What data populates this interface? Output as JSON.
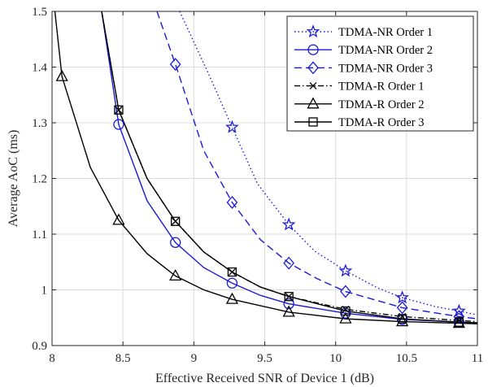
{
  "chart_data": {
    "type": "line",
    "xlabel": "Effective Received SNR of Device 1 (dB)",
    "ylabel": "Average AoC (ms)",
    "xlim": [
      8,
      11
    ],
    "ylim": [
      0.9,
      1.5
    ],
    "xticks": [
      8,
      8.5,
      9,
      9.5,
      10,
      10.5,
      11
    ],
    "xtick_labels": [
      "8",
      "8.5",
      "9",
      "9.5",
      "10",
      "10.5",
      "11"
    ],
    "yticks": [
      0.9,
      1.0,
      1.1,
      1.2,
      1.3,
      1.4,
      1.5
    ],
    "ytick_labels": [
      "0.9",
      "1",
      "1.1",
      "1.2",
      "1.3",
      "1.4",
      "1.5"
    ],
    "grid": true,
    "legend_position": "top-right",
    "series": [
      {
        "name": "TDMA-NR Order 1",
        "color": "#1a1ad6",
        "dash": "dotted",
        "marker": "star",
        "x": [
          8.9,
          9.1,
          9.27,
          9.45,
          9.67,
          9.85,
          10.07,
          10.3,
          10.47,
          10.7,
          10.87,
          11.0
        ],
        "y": [
          1.5,
          1.39,
          1.292,
          1.19,
          1.117,
          1.07,
          1.034,
          1.003,
          0.986,
          0.97,
          0.962,
          0.955
        ],
        "marker_indices": [
          2,
          4,
          6,
          8,
          10
        ]
      },
      {
        "name": "TDMA-NR Order 2",
        "color": "#1a1ad6",
        "dash": "solid",
        "marker": "circle",
        "x": [
          8.35,
          8.47,
          8.67,
          8.87,
          9.07,
          9.27,
          9.47,
          9.67,
          10.07,
          10.47,
          10.87,
          11.0
        ],
        "y": [
          1.5,
          1.297,
          1.16,
          1.085,
          1.04,
          1.012,
          0.99,
          0.975,
          0.958,
          0.947,
          0.942,
          0.94
        ],
        "marker_indices": [
          1,
          3,
          5,
          7,
          8,
          9,
          10
        ]
      },
      {
        "name": "TDMA-NR Order 3",
        "color": "#1a1ad6",
        "dash": "dashed",
        "marker": "diamond",
        "x": [
          8.74,
          8.87,
          9.07,
          9.27,
          9.47,
          9.67,
          9.87,
          10.07,
          10.47,
          10.87,
          11.0
        ],
        "y": [
          1.5,
          1.405,
          1.25,
          1.157,
          1.09,
          1.048,
          1.02,
          0.997,
          0.968,
          0.952,
          0.948
        ],
        "marker_indices": [
          1,
          3,
          5,
          7,
          8,
          9
        ]
      },
      {
        "name": "TDMA-R Order 1",
        "color": "#000000",
        "dash": "dashdot",
        "marker": "x",
        "x": [
          8.35,
          8.47,
          8.67,
          8.87,
          9.07,
          9.27,
          9.47,
          9.67,
          10.07,
          10.47,
          10.87,
          11.0
        ],
        "y": [
          1.5,
          1.323,
          1.2,
          1.123,
          1.068,
          1.032,
          1.005,
          0.988,
          0.965,
          0.952,
          0.945,
          0.943
        ],
        "marker_indices": [
          1,
          3,
          5,
          7,
          8,
          9,
          10
        ]
      },
      {
        "name": "TDMA-R Order 2",
        "color": "#000000",
        "dash": "solid",
        "marker": "triangle",
        "x": [
          8.02,
          8.07,
          8.27,
          8.47,
          8.67,
          8.87,
          9.07,
          9.27,
          9.67,
          10.07,
          10.47,
          10.87,
          11.0
        ],
        "y": [
          1.5,
          1.383,
          1.22,
          1.125,
          1.065,
          1.025,
          1.0,
          0.983,
          0.96,
          0.948,
          0.943,
          0.94,
          0.939
        ],
        "marker_indices": [
          1,
          3,
          5,
          7,
          8,
          9,
          10,
          11
        ]
      },
      {
        "name": "TDMA-R Order 3",
        "color": "#000000",
        "dash": "solid",
        "marker": "square",
        "x": [
          8.35,
          8.47,
          8.67,
          8.87,
          9.07,
          9.27,
          9.47,
          9.67,
          10.07,
          10.47,
          10.87,
          11.0
        ],
        "y": [
          1.5,
          1.323,
          1.2,
          1.123,
          1.068,
          1.032,
          1.005,
          0.988,
          0.962,
          0.948,
          0.942,
          0.941
        ],
        "marker_indices": [
          1,
          3,
          5,
          7,
          8,
          9,
          10
        ]
      }
    ]
  }
}
